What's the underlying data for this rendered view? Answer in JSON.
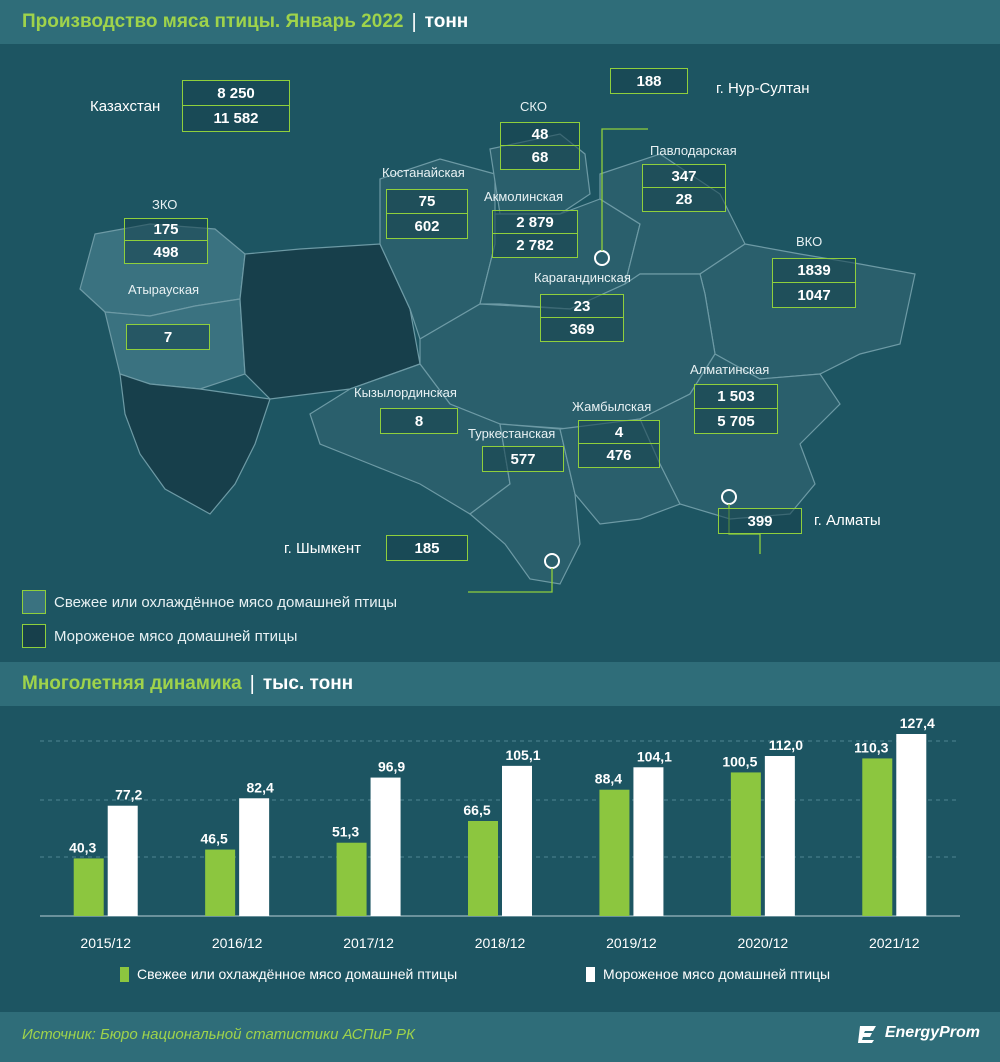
{
  "map_header": {
    "title": "Производство мяса птицы. Январь 2022",
    "unit": "тонн"
  },
  "map": {
    "kazakhstan": {
      "label": "Казахстан",
      "fresh": "8 250",
      "frozen": "11 582"
    },
    "regions": [
      {
        "id": "nur-sultan",
        "name": "г. Нур-Султан",
        "value": "188"
      },
      {
        "id": "sko",
        "name": "СКО",
        "fresh": "48",
        "frozen": "68"
      },
      {
        "id": "pavlodar",
        "name": "Павлодарская",
        "fresh": "347",
        "frozen": "28"
      },
      {
        "id": "kostanay",
        "name": "Костанайская",
        "fresh": "75",
        "frozen": "602"
      },
      {
        "id": "akmola",
        "name": "Акмолинская",
        "fresh": "2 879",
        "frozen": "2 782"
      },
      {
        "id": "zko",
        "name": "ЗКО",
        "fresh": "175",
        "frozen": "498"
      },
      {
        "id": "vko",
        "name": "ВКО",
        "fresh": "1839",
        "frozen": "1047"
      },
      {
        "id": "atyrau",
        "name": "Атырауская",
        "value": "7"
      },
      {
        "id": "karaganda",
        "name": "Карагандинская",
        "fresh": "23",
        "frozen": "369"
      },
      {
        "id": "almaty-reg",
        "name": "Алматинская",
        "fresh": "1 503",
        "frozen": "5 705"
      },
      {
        "id": "kyzylorda",
        "name": "Кызылординская",
        "value": "8"
      },
      {
        "id": "zhambyl",
        "name": "Жамбылская",
        "fresh": "4",
        "frozen": "476"
      },
      {
        "id": "turkestan",
        "name": "Туркестанская",
        "value": "577"
      },
      {
        "id": "almaty-city",
        "name": "г. Алматы",
        "value": "399"
      },
      {
        "id": "shymkent",
        "name": "г. Шымкент",
        "value": "185"
      }
    ],
    "legend": [
      {
        "label": "Свежее или охлаждённое мясо домашней птицы",
        "color": "#3a7280"
      },
      {
        "label": "Мороженое мясо домашней птицы",
        "color": "#173f4b"
      }
    ]
  },
  "chart_header": {
    "title": "Многолетняя динамика",
    "unit": "тыс. тонн"
  },
  "chart_data": {
    "type": "bar",
    "categories": [
      "2015/12",
      "2016/12",
      "2017/12",
      "2018/12",
      "2019/12",
      "2020/12",
      "2021/12"
    ],
    "series": [
      {
        "name": "Свежее или охлаждённое мясо домашней птицы",
        "color": "#8cc63f",
        "values": [
          40.3,
          46.5,
          51.3,
          66.5,
          88.4,
          100.5,
          110.3
        ],
        "labels": [
          "40,3",
          "46,5",
          "51,3",
          "66,5",
          "88,4",
          "100,5",
          "110,3"
        ]
      },
      {
        "name": "Мороженое мясо домашней птицы",
        "color": "#ffffff",
        "values": [
          77.2,
          82.4,
          96.9,
          105.1,
          104.1,
          112.0,
          127.4
        ],
        "labels": [
          "77,2",
          "82,4",
          "96,9",
          "105,1",
          "104,1",
          "112,0",
          "127,4"
        ]
      }
    ],
    "ylim": [
      0,
      140
    ],
    "grid": true
  },
  "source": "Источник: Бюро национальной статистики АСПиР РК",
  "brand": "EnergyProm"
}
